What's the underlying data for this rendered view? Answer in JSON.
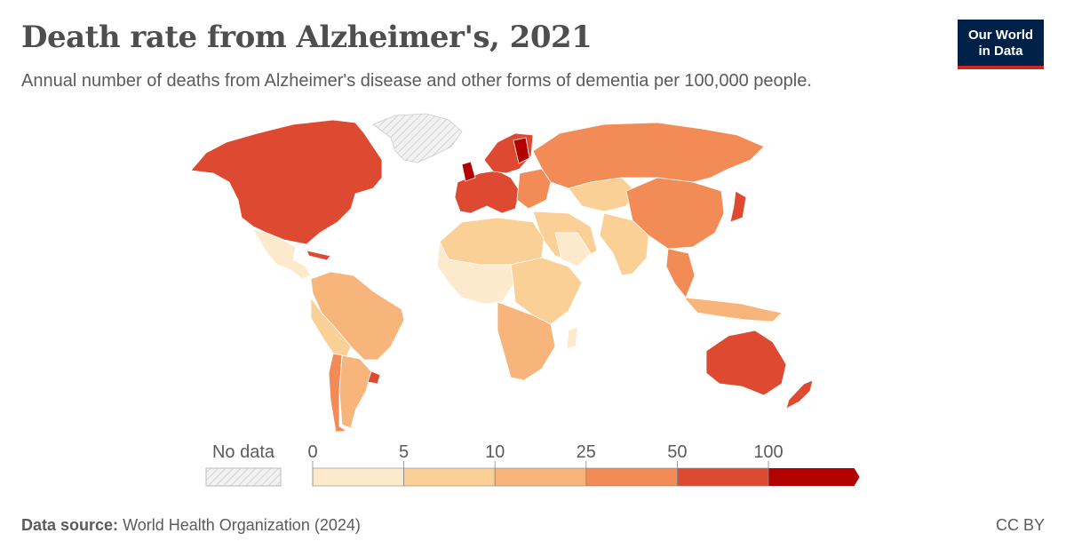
{
  "title": "Death rate from Alzheimer's, 2021",
  "subtitle": "Annual number of deaths from Alzheimer's disease and other forms of dementia per 100,000 people.",
  "logo": {
    "line1": "Our World",
    "line2": "in Data"
  },
  "legend": {
    "no_data_label": "No data",
    "ticks": [
      "0",
      "5",
      "10",
      "25",
      "50",
      "100"
    ],
    "bins": [
      {
        "range": "0-5",
        "color": "#fde9cc"
      },
      {
        "range": "5-10",
        "color": "#fbd096"
      },
      {
        "range": "10-25",
        "color": "#f7b57c"
      },
      {
        "range": "25-50",
        "color": "#f28b55"
      },
      {
        "range": "50-100",
        "color": "#dd4a31"
      },
      {
        "range": ">100",
        "color": "#b30000"
      }
    ]
  },
  "colors": {
    "no_data": "#e6e6e6",
    "border": "#ffffff"
  },
  "footer": {
    "source_label": "Data source:",
    "source_text": "World Health Organization (2024)",
    "license": "CC BY"
  }
}
